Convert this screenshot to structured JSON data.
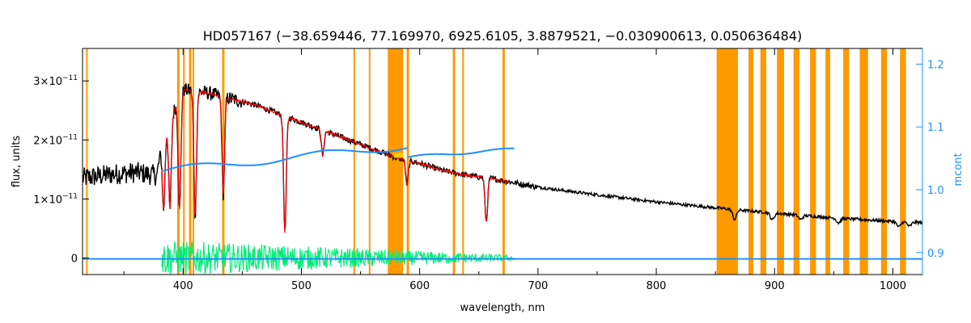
{
  "chart_data": {
    "type": "line",
    "title": "HD057167    (−38.659446, 77.169970, 6925.6105, 3.8879521, −0.030900613, 0.050636484)",
    "xlabel": "wavelength, nm",
    "ylabel": "flux, units",
    "y2label": "mcont",
    "xlim": [
      315,
      1025
    ],
    "ylim": [
      -0.28,
      3.55
    ],
    "y2lim": [
      0.865,
      1.225
    ],
    "x_ticks": [
      400,
      500,
      600,
      700,
      800,
      900,
      1000
    ],
    "y_ticks": [
      {
        "value": 0,
        "base": "0",
        "exp": ""
      },
      {
        "value": 1,
        "base": "1×10",
        "exp": "−11"
      },
      {
        "value": 2,
        "base": "2×10",
        "exp": "−11"
      },
      {
        "value": 3,
        "base": "3×10",
        "exp": "−11"
      }
    ],
    "y2_ticks": [
      0.9,
      1.0,
      1.1,
      1.2
    ],
    "colors": {
      "observed": "#000000",
      "model": "#ff0000",
      "continuum": "#1e90ff",
      "residual": "#00ee77",
      "mask": "#ff9900",
      "right_axis": "#1e90ff",
      "highlight": "#ffcc00"
    },
    "mask_bands": [
      [
        318,
        319
      ],
      [
        395,
        397
      ],
      [
        400,
        401
      ],
      [
        405,
        407
      ],
      [
        408,
        409
      ],
      [
        433,
        435
      ],
      [
        544,
        545
      ],
      [
        557,
        558
      ],
      [
        573,
        586
      ],
      [
        589,
        591
      ],
      [
        628,
        630
      ],
      [
        636,
        637
      ],
      [
        670,
        672
      ],
      [
        851,
        869
      ],
      [
        878,
        882
      ],
      [
        888,
        893
      ],
      [
        902,
        908
      ],
      [
        916,
        921
      ],
      [
        930,
        935
      ],
      [
        943,
        947
      ],
      [
        958,
        963
      ],
      [
        972,
        979
      ],
      [
        990,
        995
      ],
      [
        1006,
        1011
      ]
    ],
    "series": [
      {
        "id": "observed",
        "x_range": [
          315,
          1025
        ],
        "anchors": [
          [
            315,
            1.35
          ],
          [
            340,
            1.42
          ],
          [
            360,
            1.45
          ],
          [
            378,
            1.4
          ],
          [
            382,
            1.95
          ],
          [
            390,
            2.4
          ],
          [
            400,
            2.85
          ],
          [
            420,
            2.8
          ],
          [
            440,
            2.7
          ],
          [
            460,
            2.6
          ],
          [
            480,
            2.45
          ],
          [
            500,
            2.3
          ],
          [
            520,
            2.15
          ],
          [
            540,
            2.0
          ],
          [
            560,
            1.85
          ],
          [
            580,
            1.7
          ],
          [
            600,
            1.6
          ],
          [
            620,
            1.48
          ],
          [
            640,
            1.4
          ],
          [
            660,
            1.35
          ],
          [
            700,
            1.2
          ],
          [
            750,
            1.07
          ],
          [
            800,
            0.95
          ],
          [
            850,
            0.85
          ],
          [
            900,
            0.76
          ],
          [
            950,
            0.68
          ],
          [
            1000,
            0.62
          ],
          [
            1025,
            0.6
          ]
        ],
        "lines": [
          [
            383.5,
            0.6
          ],
          [
            388.9,
            0.65
          ],
          [
            397.0,
            0.7
          ],
          [
            410.2,
            0.75
          ],
          [
            434.0,
            0.6
          ],
          [
            486.1,
            0.82
          ],
          [
            656.3,
            0.55
          ],
          [
            589.3,
            0.25
          ],
          [
            518.0,
            0.2
          ],
          [
            866.2,
            0.2
          ],
          [
            898.0,
            0.15
          ],
          [
            922.0,
            0.1
          ],
          [
            954.0,
            0.12
          ],
          [
            1005.0,
            0.15
          ],
          [
            1014.0,
            0.12
          ]
        ]
      },
      {
        "id": "model",
        "x_range": [
          382,
          675
        ]
      },
      {
        "id": "continuum",
        "segments": [
          {
            "x": [
              383,
              590
            ],
            "y": [
              1.03,
              1.07
            ]
          },
          {
            "x": [
              590,
              680
            ],
            "y": [
              1.052,
              1.065
            ]
          },
          {
            "x": [
              315,
              1025
            ],
            "y": [
              0.89,
              0.89
            ]
          }
        ]
      },
      {
        "id": "residual",
        "x_range": [
          382,
          680
        ],
        "amplitude_start": 0.3,
        "amplitude_end": 0.05
      }
    ]
  }
}
